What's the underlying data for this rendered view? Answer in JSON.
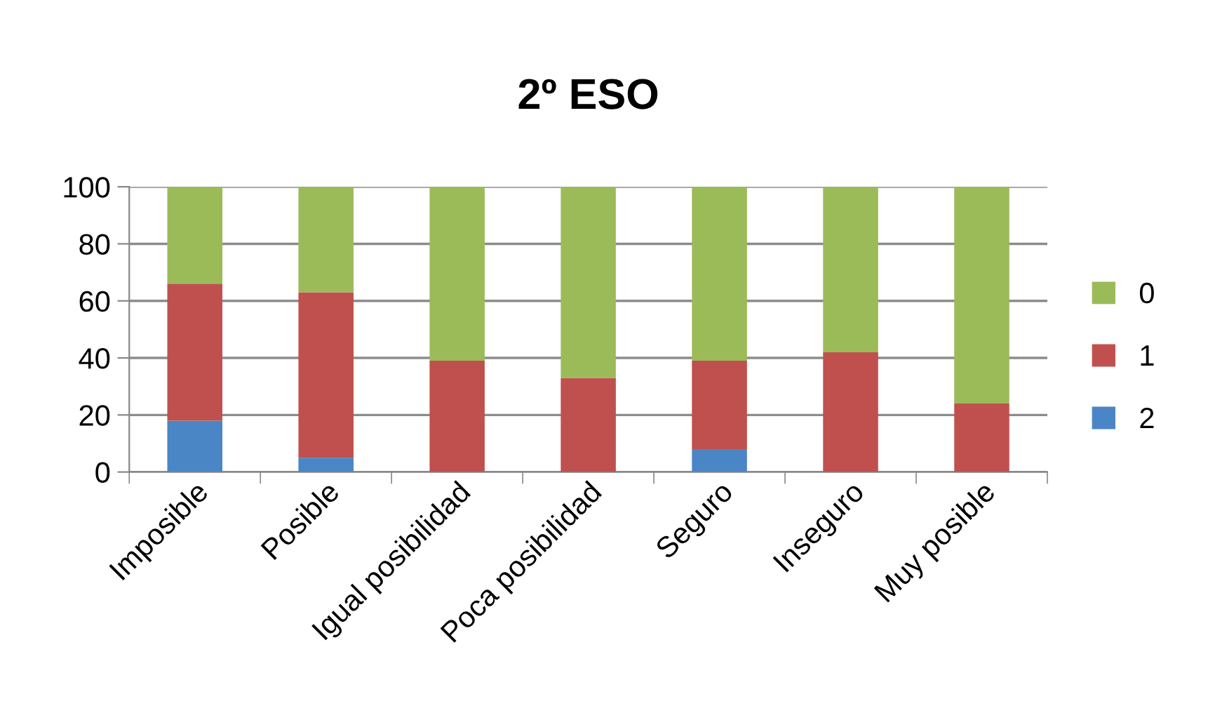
{
  "chart_data": {
    "type": "bar",
    "title": "2º ESO",
    "stacked": true,
    "grid": "y",
    "legend": "right",
    "categories": [
      "Imposible",
      "Posible",
      "Igual posibilidad",
      "Poca posibilidad",
      "Seguro",
      "Inseguro",
      "Muy posible"
    ],
    "ylim": [
      0,
      100
    ],
    "yticks": [
      0,
      20,
      40,
      60,
      80,
      100
    ],
    "series": [
      {
        "name": "2",
        "color": "#4a86c5",
        "values": [
          18,
          5,
          0,
          0,
          8,
          0,
          0
        ]
      },
      {
        "name": "1",
        "color": "#c0504d",
        "values": [
          48,
          58,
          39,
          33,
          31,
          42,
          24
        ]
      },
      {
        "name": "0",
        "color": "#9bbb59",
        "values": [
          34,
          37,
          61,
          67,
          61,
          58,
          76
        ]
      }
    ]
  }
}
